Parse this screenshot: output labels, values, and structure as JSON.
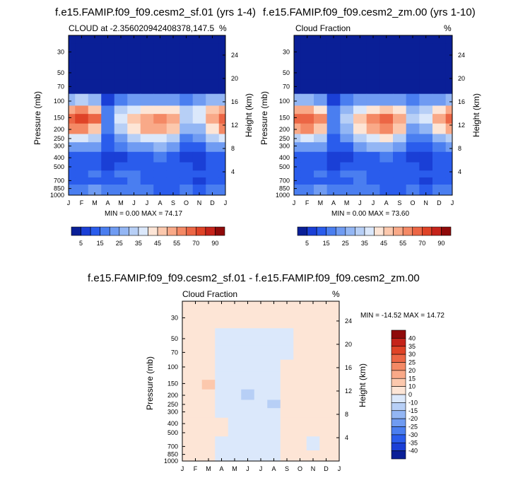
{
  "charts": [
    {
      "title": "f.e15.FAMIP.f09_f09.cesm2_sf.01 (yrs 1-4)",
      "left_label": "CLOUD at -2.356020942408378,147.5",
      "right_label": "%",
      "stats": "MIN =   0.00 MAX =  74.17"
    },
    {
      "title": "f.e15.FAMIP.f09_f09.cesm2_zm.00 (yrs 1-10)",
      "left_label": "Cloud Fraction",
      "right_label": "%",
      "stats": "MIN =   0.00 MAX =  73.60"
    },
    {
      "title": "f.e15.FAMIP.f09_f09.cesm2_sf.01 - f.e15.FAMIP.f09_f09.cesm2_zm.00",
      "left_label": "Cloud Fraction",
      "right_label": "%",
      "stats": "MIN = -14.52 MAX =  14.72"
    }
  ],
  "chart_data": [
    {
      "type": "heatmap",
      "title": "f.e15.FAMIP.f09_f09.cesm2_sf.01 (yrs 1-4)",
      "xlabel": "",
      "ylabel": "Pressure (mb)",
      "y2label": "Height (km)",
      "x_ticks": [
        "J",
        "F",
        "M",
        "A",
        "M",
        "J",
        "J",
        "A",
        "S",
        "O",
        "N",
        "D",
        "J"
      ],
      "y_ticks": [
        30,
        50,
        70,
        100,
        150,
        200,
        250,
        300,
        400,
        500,
        700,
        850,
        1000
      ],
      "y_lim": [
        20,
        1000
      ],
      "y2_ticks": [
        24,
        20,
        16,
        12,
        8,
        4
      ],
      "levels": [
        0,
        5,
        10,
        15,
        20,
        25,
        30,
        35,
        40,
        45,
        50,
        55,
        60,
        70,
        80,
        90
      ],
      "months": [
        "J",
        "F",
        "M",
        "A",
        "M",
        "J",
        "J",
        "A",
        "S",
        "O",
        "N",
        "D",
        "J"
      ],
      "pressure": [
        20,
        30,
        50,
        70,
        100,
        125,
        150,
        200,
        250,
        300,
        400,
        500,
        600,
        700,
        850,
        1000
      ],
      "values": [
        [
          0,
          0,
          0,
          0,
          0,
          0,
          0,
          0,
          0,
          0,
          0,
          0,
          0
        ],
        [
          0,
          0,
          0,
          0,
          0,
          0,
          0,
          0,
          0,
          0,
          0,
          0,
          0
        ],
        [
          0,
          0,
          0,
          0,
          0,
          0,
          0,
          0,
          0,
          0,
          0,
          0,
          0
        ],
        [
          2,
          2,
          2,
          1,
          1,
          1,
          1,
          1,
          1,
          1,
          1,
          2,
          2
        ],
        [
          28,
          30,
          25,
          8,
          18,
          22,
          24,
          22,
          20,
          18,
          22,
          25,
          28
        ],
        [
          52,
          56,
          45,
          15,
          30,
          36,
          42,
          44,
          40,
          30,
          35,
          45,
          52
        ],
        [
          68,
          72,
          60,
          18,
          36,
          45,
          52,
          55,
          50,
          34,
          38,
          52,
          68
        ],
        [
          55,
          58,
          48,
          15,
          30,
          42,
          50,
          52,
          46,
          26,
          28,
          42,
          55
        ],
        [
          35,
          36,
          30,
          12,
          22,
          30,
          35,
          38,
          33,
          18,
          20,
          30,
          35
        ],
        [
          22,
          22,
          20,
          10,
          15,
          20,
          24,
          26,
          22,
          13,
          14,
          20,
          22
        ],
        [
          12,
          12,
          10,
          5,
          8,
          12,
          14,
          15,
          12,
          8,
          8,
          10,
          12
        ],
        [
          10,
          11,
          10,
          8,
          10,
          12,
          12,
          12,
          10,
          10,
          8,
          10,
          10
        ],
        [
          12,
          14,
          15,
          12,
          15,
          16,
          14,
          14,
          12,
          12,
          12,
          12,
          12
        ],
        [
          10,
          12,
          14,
          12,
          14,
          15,
          12,
          10,
          10,
          12,
          8,
          10,
          10
        ],
        [
          15,
          18,
          20,
          18,
          18,
          18,
          15,
          14,
          14,
          15,
          14,
          15,
          15
        ],
        [
          15,
          18,
          20,
          18,
          18,
          18,
          15,
          14,
          14,
          15,
          14,
          15,
          15
        ]
      ]
    },
    {
      "type": "heatmap",
      "title": "f.e15.FAMIP.f09_f09.cesm2_zm.00 (yrs 1-10)",
      "xlabel": "",
      "ylabel": "Pressure (mb)",
      "y2label": "Height (km)",
      "x_ticks": [
        "J",
        "F",
        "M",
        "A",
        "M",
        "J",
        "J",
        "A",
        "S",
        "O",
        "N",
        "D",
        "J"
      ],
      "y_ticks": [
        30,
        50,
        70,
        100,
        150,
        200,
        250,
        300,
        400,
        500,
        700,
        850,
        1000
      ],
      "y_lim": [
        20,
        1000
      ],
      "y2_ticks": [
        24,
        20,
        16,
        12,
        8,
        4
      ],
      "levels": [
        0,
        5,
        10,
        15,
        20,
        25,
        30,
        35,
        40,
        45,
        50,
        55,
        60,
        70,
        80,
        90
      ],
      "months": [
        "J",
        "F",
        "M",
        "A",
        "M",
        "J",
        "J",
        "A",
        "S",
        "O",
        "N",
        "D",
        "J"
      ],
      "pressure": [
        20,
        30,
        50,
        70,
        100,
        125,
        150,
        200,
        250,
        300,
        400,
        500,
        600,
        700,
        850,
        1000
      ],
      "values": [
        [
          0,
          0,
          0,
          0,
          0,
          0,
          0,
          0,
          0,
          0,
          0,
          0,
          0
        ],
        [
          0,
          0,
          0,
          0,
          0,
          0,
          0,
          0,
          0,
          0,
          0,
          0,
          0
        ],
        [
          0,
          0,
          0,
          0,
          0,
          0,
          0,
          0,
          0,
          0,
          0,
          0,
          0
        ],
        [
          2,
          2,
          2,
          1,
          1,
          1,
          1,
          1,
          1,
          1,
          1,
          2,
          2
        ],
        [
          26,
          28,
          22,
          8,
          16,
          20,
          24,
          24,
          20,
          16,
          20,
          24,
          26
        ],
        [
          50,
          54,
          44,
          16,
          28,
          36,
          44,
          48,
          42,
          28,
          32,
          44,
          50
        ],
        [
          64,
          68,
          58,
          18,
          34,
          46,
          56,
          60,
          52,
          32,
          36,
          50,
          64
        ],
        [
          52,
          56,
          46,
          15,
          28,
          42,
          52,
          56,
          48,
          24,
          26,
          40,
          52
        ],
        [
          33,
          35,
          30,
          12,
          20,
          30,
          36,
          40,
          34,
          16,
          18,
          28,
          33
        ],
        [
          20,
          21,
          20,
          10,
          14,
          20,
          25,
          27,
          23,
          12,
          13,
          19,
          20
        ],
        [
          11,
          12,
          10,
          5,
          8,
          12,
          14,
          16,
          13,
          8,
          8,
          10,
          11
        ],
        [
          10,
          11,
          10,
          8,
          10,
          12,
          12,
          12,
          10,
          10,
          8,
          10,
          10
        ],
        [
          12,
          14,
          15,
          12,
          15,
          16,
          14,
          14,
          12,
          12,
          12,
          12,
          12
        ],
        [
          10,
          12,
          14,
          12,
          14,
          15,
          12,
          10,
          10,
          12,
          8,
          10,
          10
        ],
        [
          15,
          18,
          20,
          18,
          18,
          18,
          15,
          14,
          14,
          15,
          14,
          15,
          15
        ],
        [
          15,
          18,
          20,
          18,
          18,
          18,
          15,
          14,
          14,
          15,
          14,
          15,
          15
        ]
      ]
    },
    {
      "type": "heatmap",
      "title": "f.e15.FAMIP.f09_f09.cesm2_sf.01 - f.e15.FAMIP.f09_f09.cesm2_zm.00",
      "xlabel": "",
      "ylabel": "Pressure (mb)",
      "y2label": "Height (km)",
      "x_ticks": [
        "J",
        "F",
        "M",
        "A",
        "M",
        "J",
        "J",
        "A",
        "S",
        "O",
        "N",
        "D",
        "J"
      ],
      "y_ticks": [
        30,
        50,
        70,
        100,
        150,
        200,
        250,
        300,
        400,
        500,
        700,
        850,
        1000
      ],
      "y_lim": [
        20,
        1000
      ],
      "y2_ticks": [
        24,
        20,
        16,
        12,
        8,
        4
      ],
      "levels": [
        -45,
        -40,
        -35,
        -30,
        -25,
        -20,
        -15,
        -10,
        0,
        10,
        15,
        20,
        25,
        30,
        35,
        40,
        45
      ],
      "months": [
        "J",
        "F",
        "M",
        "A",
        "M",
        "J",
        "J",
        "A",
        "S",
        "O",
        "N",
        "D",
        "J"
      ],
      "pressure": [
        20,
        30,
        50,
        70,
        100,
        125,
        150,
        200,
        250,
        300,
        400,
        500,
        600,
        700,
        850,
        1000
      ],
      "values": [
        [
          2,
          2,
          2,
          1,
          1,
          1,
          1,
          1,
          1,
          1,
          2,
          2,
          2
        ],
        [
          2,
          2,
          2,
          1,
          1,
          1,
          1,
          1,
          1,
          2,
          2,
          2,
          2
        ],
        [
          2,
          2,
          2,
          -1,
          -1,
          -1,
          -1,
          -1,
          -1,
          2,
          2,
          2,
          2
        ],
        [
          2,
          2,
          2,
          -1,
          -1,
          -1,
          -1,
          -1,
          -1,
          2,
          2,
          2,
          2
        ],
        [
          3,
          3,
          5,
          -2,
          -2,
          -2,
          -2,
          -2,
          2,
          3,
          3,
          3,
          3
        ],
        [
          3,
          4,
          7,
          -2,
          -2,
          -2,
          -2,
          -3,
          3,
          4,
          5,
          3,
          3
        ],
        [
          4,
          5,
          10,
          -2,
          -2,
          -4,
          -3,
          -3,
          4,
          5,
          6,
          4,
          4
        ],
        [
          4,
          5,
          9,
          -2,
          -2,
          -11,
          -3,
          -5,
          4,
          4,
          5,
          3,
          4
        ],
        [
          3,
          4,
          6,
          -1,
          -1,
          -2,
          -2,
          -11,
          2,
          4,
          4,
          3,
          3
        ],
        [
          2,
          3,
          4,
          -1,
          -1,
          -1,
          -1,
          -2,
          2,
          3,
          3,
          2,
          2
        ],
        [
          2,
          2,
          3,
          1,
          -1,
          -1,
          -1,
          -1,
          1,
          2,
          2,
          2,
          2
        ],
        [
          2,
          2,
          2,
          1,
          -1,
          -1,
          -1,
          -1,
          1,
          2,
          2,
          2,
          2
        ],
        [
          2,
          2,
          1,
          -1,
          -1,
          -1,
          -1,
          -1,
          1,
          2,
          -1,
          2,
          2
        ],
        [
          2,
          2,
          1,
          -1,
          -1,
          -1,
          -1,
          -1,
          1,
          2,
          -1,
          2,
          2
        ],
        [
          2,
          2,
          1,
          -1,
          -1,
          -1,
          -1,
          -1,
          1,
          2,
          2,
          2,
          2
        ],
        [
          2,
          2,
          1,
          -1,
          -1,
          -1,
          -1,
          -1,
          1,
          1,
          2,
          2,
          2
        ]
      ]
    }
  ],
  "colorbar_seq": {
    "labels": [
      "5",
      "15",
      "25",
      "35",
      "45",
      "55",
      "70",
      "90"
    ],
    "colors": [
      "#0a1f97",
      "#1a3fd6",
      "#2a5cec",
      "#4a7ef0",
      "#6f9bf2",
      "#93b6f4",
      "#b7cff6",
      "#dbe8fb",
      "#fde5d6",
      "#fcc8ad",
      "#f9a988",
      "#f48965",
      "#ec6645",
      "#df4327",
      "#c5231a",
      "#8f0a0a"
    ]
  },
  "colorbar_div": {
    "labels": [
      "40",
      "35",
      "30",
      "25",
      "20",
      "15",
      "10",
      "0",
      "-10",
      "-15",
      "-20",
      "-25",
      "-30",
      "-35",
      "-40"
    ],
    "colors": [
      "#8f0a0a",
      "#c5231a",
      "#df4327",
      "#ec6645",
      "#f48965",
      "#f9a988",
      "#fcc8ad",
      "#fde5d6",
      "#dbe8fb",
      "#b7cff6",
      "#93b6f4",
      "#6f9bf2",
      "#4a7ef0",
      "#2a5cec",
      "#1a3fd6",
      "#0a1f97"
    ]
  }
}
